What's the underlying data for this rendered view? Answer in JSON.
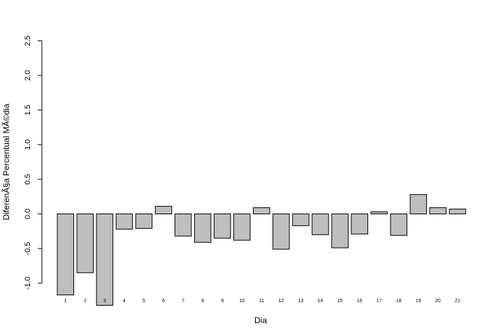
{
  "chart_data": {
    "type": "bar",
    "title": "",
    "xlabel": "Dia",
    "ylabel": "DiferenÃ§a Percentual MÃ©dia",
    "ylim": [
      -1.3,
      2.5
    ],
    "yticks": [
      "-1.0",
      "-0.5",
      "0.0",
      "0.5",
      "1.0",
      "1.5",
      "2.0",
      "2.5"
    ],
    "ytick_values": [
      -1.0,
      -0.5,
      0.0,
      0.5,
      1.0,
      1.5,
      2.0,
      2.5
    ],
    "categories": [
      "1",
      "2",
      "3",
      "4",
      "5",
      "6",
      "7",
      "8",
      "9",
      "10",
      "11",
      "12",
      "13",
      "14",
      "15",
      "16",
      "17",
      "18",
      "19",
      "20",
      "21"
    ],
    "values": [
      -1.17,
      -0.85,
      -1.32,
      -0.22,
      -0.21,
      0.11,
      -0.32,
      -0.41,
      -0.35,
      -0.38,
      0.09,
      -0.51,
      -0.17,
      -0.3,
      -0.49,
      -0.29,
      0.03,
      -0.31,
      0.28,
      0.09,
      0.07
    ],
    "bar_color": "#bebebe",
    "grid": false,
    "legend": "none"
  }
}
